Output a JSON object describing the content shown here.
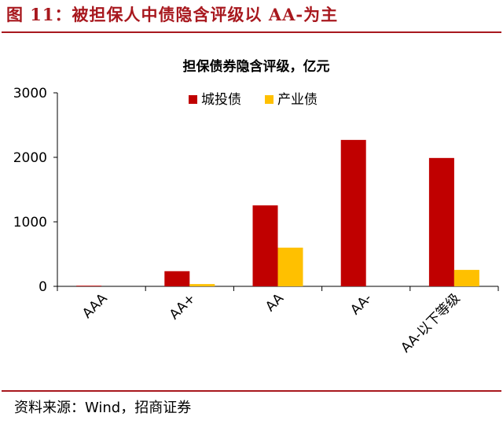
{
  "figure": {
    "title": "图  11：被担保人中债隐含评级以 AA-为主",
    "source": "资料来源：Wind，招商证券"
  },
  "colors": {
    "accent": "#a8181e",
    "series_urban": "#c00000",
    "series_industry": "#ffc000"
  },
  "chart_data": {
    "type": "bar",
    "title": "担保债券隐含评级，亿元",
    "xlabel": "",
    "ylabel": "",
    "categories": [
      "AAA",
      "AA+",
      "AA",
      "AA-",
      "AA-以下等级"
    ],
    "ylim": [
      0,
      3000
    ],
    "yticks": [
      0,
      1000,
      2000,
      3000
    ],
    "grid": false,
    "legend": "top-center",
    "series": [
      {
        "name": "城投债",
        "color": "#c00000",
        "values": [
          10,
          235,
          1255,
          2270,
          1990
        ]
      },
      {
        "name": "产业债",
        "color": "#ffc000",
        "values": [
          0,
          35,
          600,
          0,
          255
        ]
      }
    ]
  }
}
